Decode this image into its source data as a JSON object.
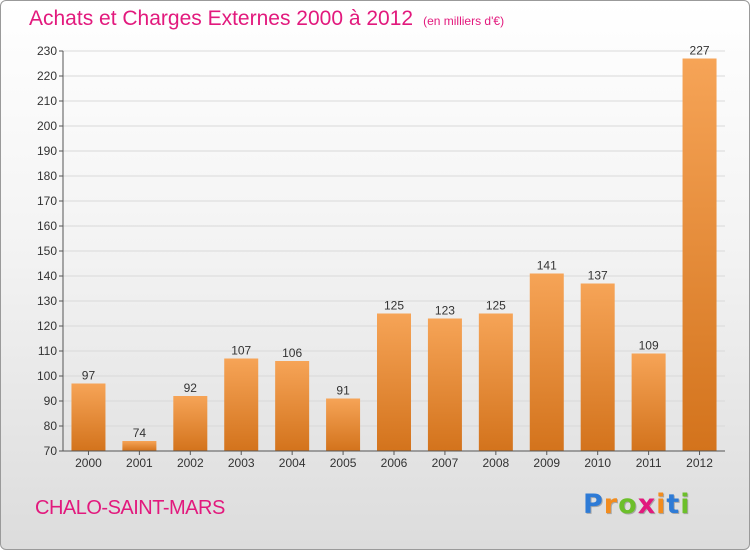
{
  "title": {
    "main": "Achats et Charges Externes 2000 à 2012",
    "unit": "(en milliers d'€)"
  },
  "commune": "CHALO-SAINT-MARS",
  "logo": {
    "text": "Proxiti",
    "letter_colors": [
      "#2e7bd6",
      "#f28c1e",
      "#6cbf2a",
      "#e2197d",
      "#f28c1e",
      "#2e7bd6",
      "#6cbf2a"
    ]
  },
  "colors": {
    "title": "#e2197d",
    "bar_light": "#f6a457",
    "bar_dark": "#d3731c"
  },
  "chart_data": {
    "type": "bar",
    "categories": [
      "2000",
      "2001",
      "2002",
      "2003",
      "2004",
      "2005",
      "2006",
      "2007",
      "2008",
      "2009",
      "2010",
      "2011",
      "2012"
    ],
    "values": [
      97,
      74,
      92,
      107,
      106,
      91,
      125,
      123,
      125,
      141,
      137,
      109,
      227
    ],
    "ylim": [
      70,
      230
    ],
    "yticks": [
      70,
      80,
      90,
      100,
      110,
      120,
      130,
      140,
      150,
      160,
      170,
      180,
      190,
      200,
      210,
      220,
      230
    ],
    "grid": true,
    "xlabel": "",
    "ylabel": ""
  }
}
